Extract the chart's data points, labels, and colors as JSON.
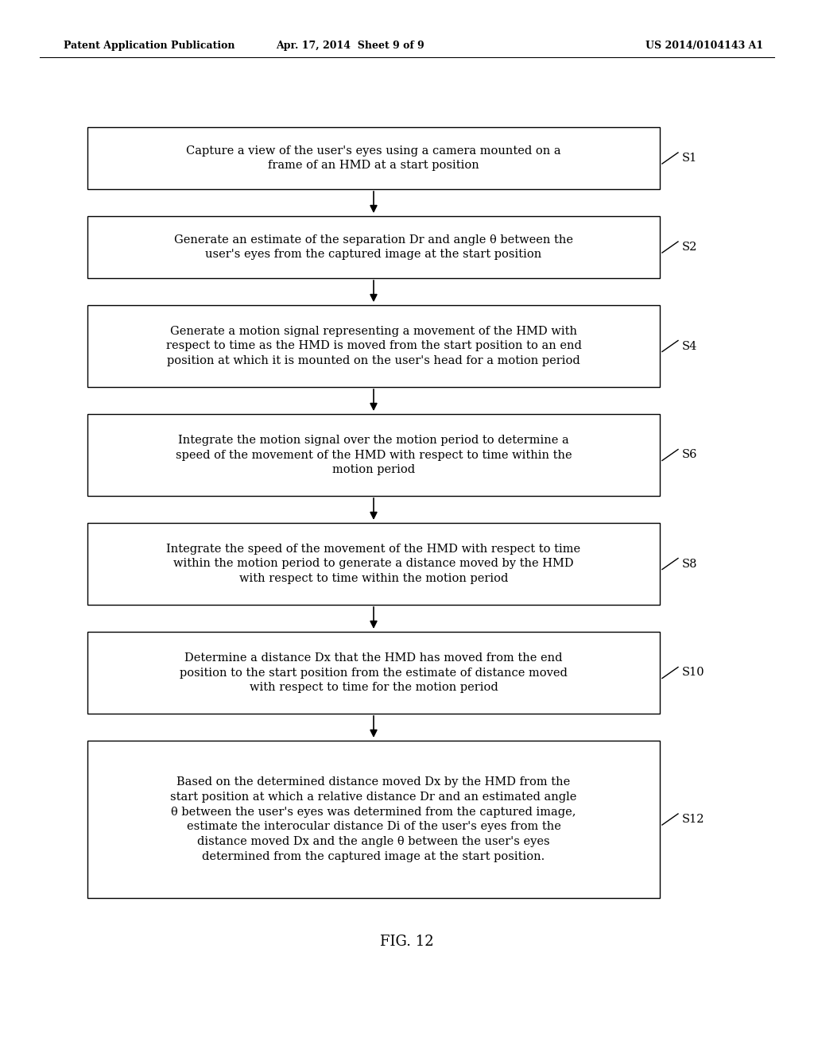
{
  "title": "FIG. 12",
  "header_left": "Patent Application Publication",
  "header_center": "Apr. 17, 2014  Sheet 9 of 9",
  "header_right": "US 2014/0104143 A1",
  "background_color": "#ffffff",
  "box_color": "#ffffff",
  "box_edge_color": "#000000",
  "text_color": "#000000",
  "arrow_color": "#000000",
  "steps": [
    {
      "label": "S1",
      "text": "Capture a view of the user's eyes using a camera mounted on a\nframe of an HMD at a start position",
      "lines": 2
    },
    {
      "label": "S2",
      "text": "Generate an estimate of the separation Dr and angle θ between the\nuser's eyes from the captured image at the start position",
      "lines": 2
    },
    {
      "label": "S4",
      "text": "Generate a motion signal representing a movement of the HMD with\nrespect to time as the HMD is moved from the start position to an end\nposition at which it is mounted on the user's head for a motion period",
      "lines": 3
    },
    {
      "label": "S6",
      "text": "Integrate the motion signal over the motion period to determine a\nspeed of the movement of the HMD with respect to time within the\nmotion period",
      "lines": 3
    },
    {
      "label": "S8",
      "text": "Integrate the speed of the movement of the HMD with respect to time\nwithin the motion period to generate a distance moved by the HMD\nwith respect to time within the motion period",
      "lines": 3
    },
    {
      "label": "S10",
      "text": "Determine a distance Dx that the HMD has moved from the end\nposition to the start position from the estimate of distance moved\nwith respect to time for the motion period",
      "lines": 3
    },
    {
      "label": "S12",
      "text": "Based on the determined distance moved Dx by the HMD from the\nstart position at which a relative distance Dr and an estimated angle\nθ between the user's eyes was determined from the captured image,\nestimate the interocular distance Di of the user's eyes from the\ndistance moved Dx and the angle θ between the user's eyes\ndetermined from the captured image at the start position.",
      "lines": 6
    }
  ],
  "fig_width": 10.24,
  "fig_height": 13.2,
  "dpi": 100
}
